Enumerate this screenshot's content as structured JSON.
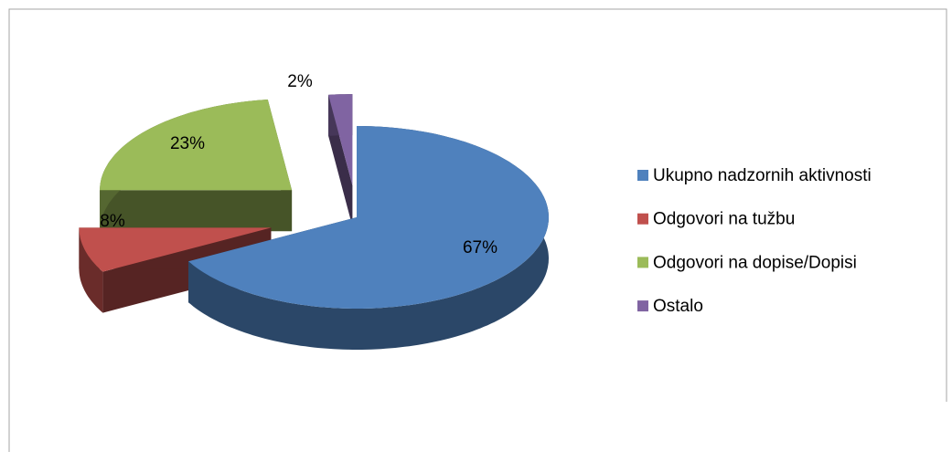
{
  "chart_data": {
    "type": "pie",
    "categories": [
      "Ukupno nadzornih aktivnosti",
      "Odgovori na tužbu",
      "Odgovori na dopise/Dopisi",
      "Ostalo"
    ],
    "values": [
      67,
      8,
      23,
      2
    ],
    "value_labels": [
      "67%",
      "8%",
      "23%",
      "2%"
    ],
    "colors": [
      "#4f81bd",
      "#c0504d",
      "#9bbb59",
      "#8064a2"
    ],
    "legend": "right"
  }
}
